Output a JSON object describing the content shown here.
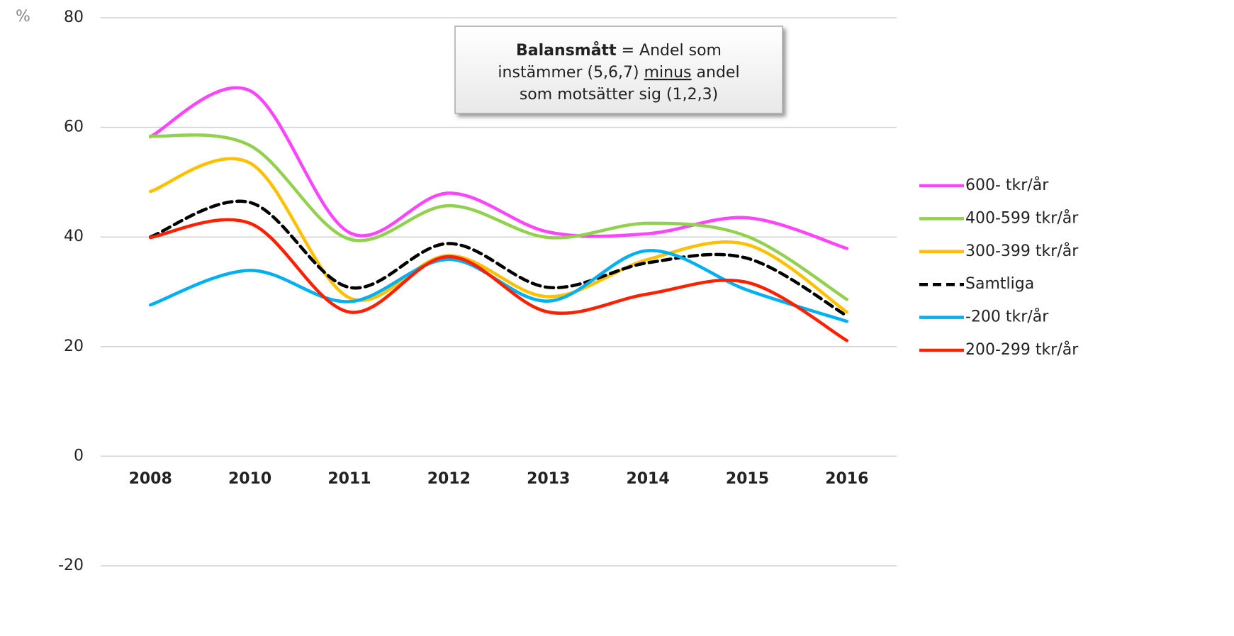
{
  "chart_data": {
    "type": "line",
    "y_unit": "%",
    "categories": [
      "2008",
      "2010",
      "2011",
      "2012",
      "2013",
      "2014",
      "2015",
      "2016"
    ],
    "ylim": [
      -20,
      80
    ],
    "yticks": [
      -20,
      0,
      20,
      40,
      60,
      80
    ],
    "grid": true,
    "smooth": true,
    "legend": "right",
    "annotation": [
      [
        {
          "text": "Balansmått",
          "bold": true
        },
        {
          "text": " = Andel som"
        }
      ],
      [
        {
          "text": "instämmer (5,6,7) "
        },
        {
          "text": "minus",
          "underline": true
        },
        {
          "text": " andel"
        }
      ],
      [
        {
          "text": "som motsätter sig (1,2,3)"
        }
      ]
    ],
    "series": [
      {
        "name": "600- tkr/år",
        "color": "#ff44ff",
        "values": [
          58.3,
          66.7,
          40.8,
          48.0,
          40.9,
          40.6,
          43.5,
          37.9
        ]
      },
      {
        "name": "400-599 tkr/år",
        "color": "#92d050",
        "values": [
          58.4,
          56.7,
          39.6,
          45.7,
          39.9,
          42.5,
          40.1,
          28.6
        ]
      },
      {
        "name": "300-399 tkr/år",
        "color": "#ffc000",
        "values": [
          48.3,
          53.5,
          28.9,
          36.6,
          29.1,
          35.9,
          38.6,
          26.3
        ]
      },
      {
        "name": "Samtliga",
        "color": "#000000",
        "dash": true,
        "values": [
          40.0,
          46.3,
          30.8,
          38.8,
          30.8,
          35.3,
          36.1,
          25.6
        ]
      },
      {
        "name": "-200 tkr/år",
        "color": "#00b0f0",
        "values": [
          27.6,
          33.9,
          28.2,
          35.9,
          28.3,
          37.5,
          30.3,
          24.6
        ]
      },
      {
        "name": "200-299 tkr/år",
        "color": "#ff2000",
        "values": [
          39.9,
          42.5,
          26.3,
          36.4,
          26.3,
          29.6,
          31.7,
          21.1
        ]
      }
    ]
  }
}
